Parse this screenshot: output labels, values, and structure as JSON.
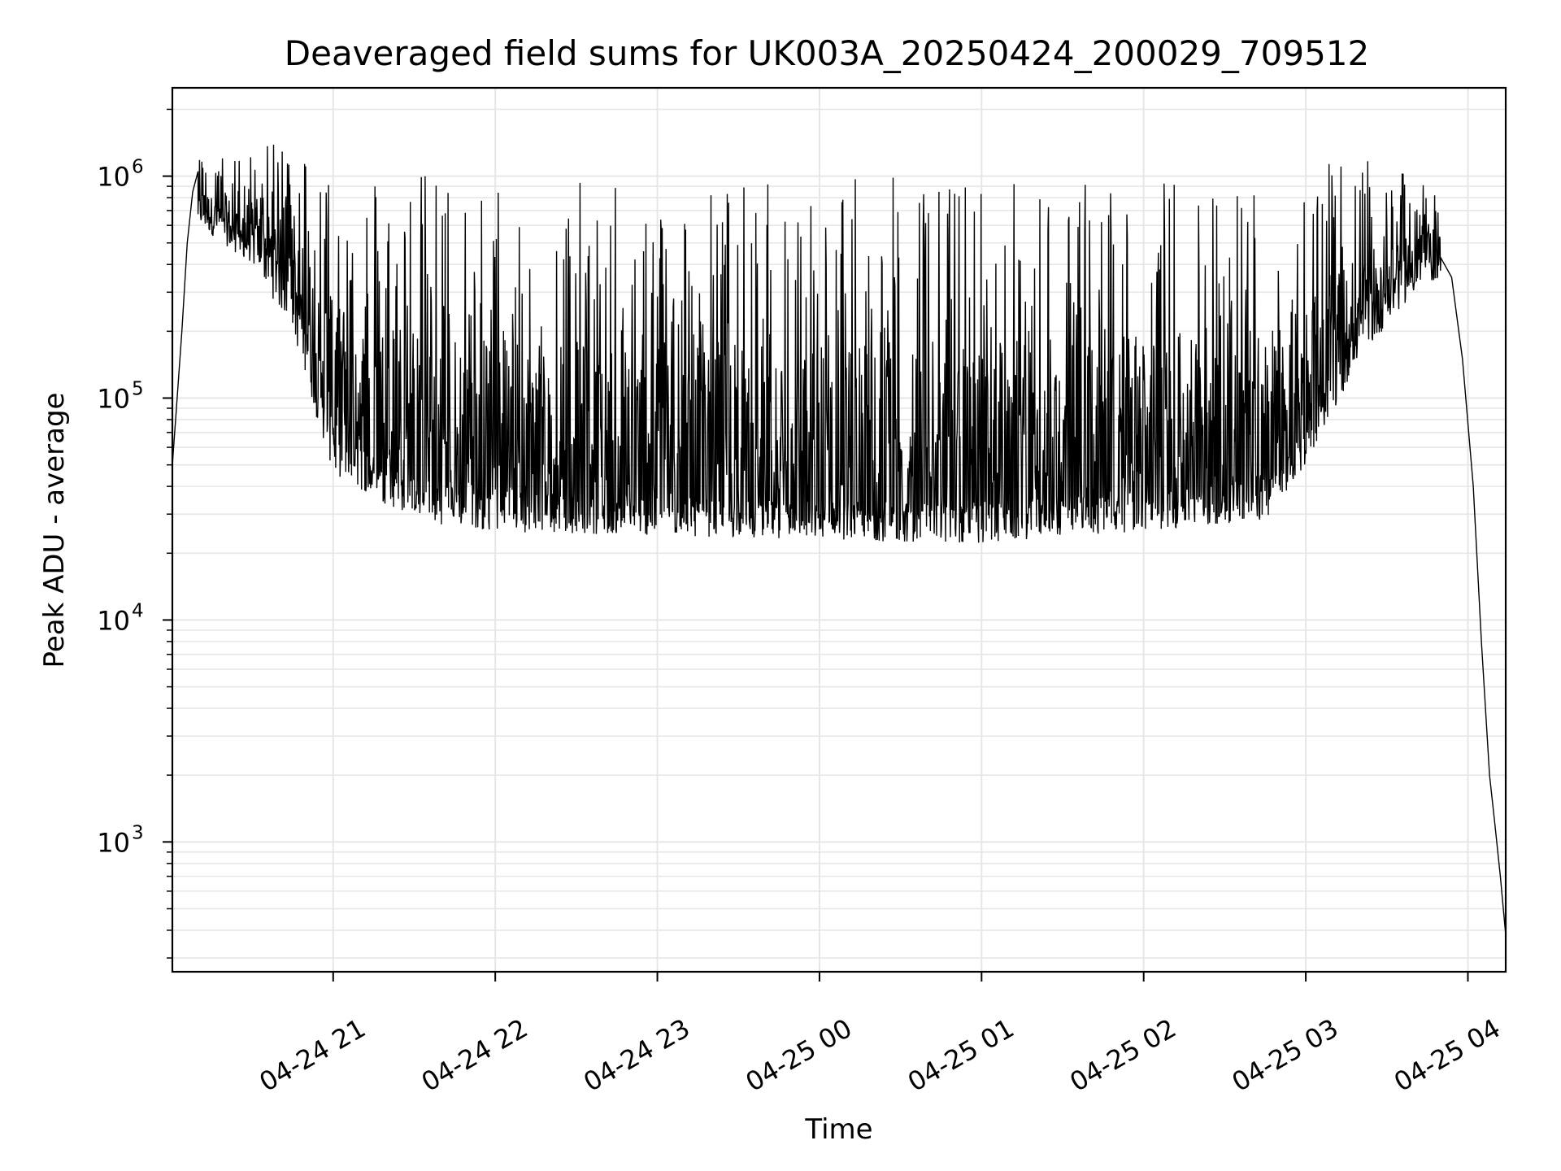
{
  "chart_data": {
    "type": "line",
    "title": "Deaveraged field sums for UK003A_20250424_200029_709512",
    "xlabel": "Time",
    "ylabel": "Peak ADU - average",
    "y_scale": "log",
    "grid": true,
    "grid_minor": true,
    "line_color": "#000000",
    "grid_color": "#e6e6e6",
    "xlim": [
      "2025-04-24 20:00:29",
      "2025-04-25 04:14:00"
    ],
    "ylim": [
      260,
      2500000
    ],
    "x_ticks": [
      {
        "value": "2025-04-24 21:00",
        "label": "04-24 21"
      },
      {
        "value": "2025-04-24 22:00",
        "label": "04-24 22"
      },
      {
        "value": "2025-04-24 23:00",
        "label": "04-24 23"
      },
      {
        "value": "2025-04-25 00:00",
        "label": "04-25 00"
      },
      {
        "value": "2025-04-25 01:00",
        "label": "04-25 01"
      },
      {
        "value": "2025-04-25 02:00",
        "label": "04-25 02"
      },
      {
        "value": "2025-04-25 03:00",
        "label": "04-25 03"
      },
      {
        "value": "2025-04-25 04:00",
        "label": "04-25 04"
      }
    ],
    "y_ticks": [
      {
        "value": 1000,
        "base": "10",
        "exp": "3"
      },
      {
        "value": 10000,
        "base": "10",
        "exp": "4"
      },
      {
        "value": 100000,
        "base": "10",
        "exp": "5"
      },
      {
        "value": 1000000,
        "base": "10",
        "exp": "6"
      }
    ],
    "series": [
      {
        "points": [
          [
            "2025-04-24 20:00:29",
            50000
          ],
          [
            "2025-04-24 20:02",
            90000
          ],
          [
            "2025-04-24 20:04",
            200000
          ],
          [
            "2025-04-24 20:06",
            500000
          ],
          [
            "2025-04-24 20:08",
            850000
          ],
          [
            "2025-04-24 20:10",
            1050000
          ],
          [
            "2025-04-24 20:15",
            900000
          ],
          [
            "2025-04-24 20:20",
            700000
          ],
          [
            "2025-04-24 20:25",
            600000
          ],
          [
            "2025-04-24 20:30",
            700000
          ],
          [
            "2025-04-24 20:35",
            800000
          ],
          [
            "2025-04-24 20:40",
            750000
          ],
          [
            "2025-04-24 20:45",
            550000
          ],
          [
            "2025-04-24 20:50",
            350000
          ],
          [
            "2025-04-24 20:55",
            200000
          ],
          [
            "2025-04-24 21:00",
            120000
          ],
          [
            "2025-04-24 21:10",
            70000
          ],
          [
            "2025-04-24 21:20",
            55000
          ],
          [
            "2025-04-24 21:30",
            50000
          ],
          [
            "2025-04-24 22:00",
            45000
          ],
          [
            "2025-04-24 22:30",
            42000
          ],
          [
            "2025-04-24 23:00",
            40000
          ],
          [
            "2025-04-24 23:30",
            38000
          ],
          [
            "2025-04-25 00:00",
            38000
          ],
          [
            "2025-04-25 00:30",
            38000
          ],
          [
            "2025-04-25 01:00",
            38000
          ],
          [
            "2025-04-25 01:30",
            40000
          ],
          [
            "2025-04-25 02:00",
            42000
          ],
          [
            "2025-04-25 02:30",
            45000
          ],
          [
            "2025-04-25 02:50",
            55000
          ],
          [
            "2025-04-25 03:00",
            70000
          ],
          [
            "2025-04-25 03:10",
            150000
          ],
          [
            "2025-04-25 03:20",
            300000
          ],
          [
            "2025-04-25 03:30",
            450000
          ],
          [
            "2025-04-25 03:40",
            500000
          ],
          [
            "2025-04-25 03:50",
            500000
          ],
          [
            "2025-04-25 03:54",
            350000
          ],
          [
            "2025-04-25 03:58",
            150000
          ],
          [
            "2025-04-25 04:02",
            40000
          ],
          [
            "2025-04-25 04:05",
            8000
          ],
          [
            "2025-04-25 04:08",
            2000
          ],
          [
            "2025-04-25 04:10",
            1200
          ],
          [
            "2025-04-25 04:12",
            700
          ],
          [
            "2025-04-25 04:14",
            380
          ]
        ],
        "spike_envelope": [
          [
            "2025-04-24 20:10",
            1200000
          ],
          [
            "2025-04-24 20:30",
            1300000
          ],
          [
            "2025-04-24 20:45",
            1500000
          ],
          [
            "2025-04-24 21:00",
            1200000
          ],
          [
            "2025-04-24 21:30",
            1100000
          ],
          [
            "2025-04-24 22:00",
            1000000
          ],
          [
            "2025-04-24 23:00",
            900000
          ],
          [
            "2025-04-25 00:00",
            1000000
          ],
          [
            "2025-04-25 01:00",
            1000000
          ],
          [
            "2025-04-25 02:00",
            1000000
          ],
          [
            "2025-04-25 02:45",
            1100000
          ],
          [
            "2025-04-25 03:00",
            1100000
          ],
          [
            "2025-04-25 03:20",
            1200000
          ],
          [
            "2025-04-25 03:40",
            1000000
          ],
          [
            "2025-04-25 03:50",
            800000
          ]
        ],
        "trough_envelope": [
          [
            "2025-04-24 20:10",
            600000
          ],
          [
            "2025-04-24 20:30",
            400000
          ],
          [
            "2025-04-24 20:45",
            200000
          ],
          [
            "2025-04-24 21:00",
            45000
          ],
          [
            "2025-04-24 21:20",
            33000
          ],
          [
            "2025-04-24 21:30",
            28000
          ],
          [
            "2025-04-24 22:00",
            25000
          ],
          [
            "2025-04-24 23:00",
            24000
          ],
          [
            "2025-04-25 00:00",
            23000
          ],
          [
            "2025-04-25 01:00",
            22000
          ],
          [
            "2025-04-25 01:30",
            24000
          ],
          [
            "2025-04-25 02:00",
            25000
          ],
          [
            "2025-04-25 02:45",
            28000
          ],
          [
            "2025-04-25 03:00",
            50000
          ],
          [
            "2025-04-25 03:20",
            150000
          ],
          [
            "2025-04-25 03:40",
            300000
          ],
          [
            "2025-04-25 03:50",
            350000
          ]
        ]
      }
    ]
  }
}
